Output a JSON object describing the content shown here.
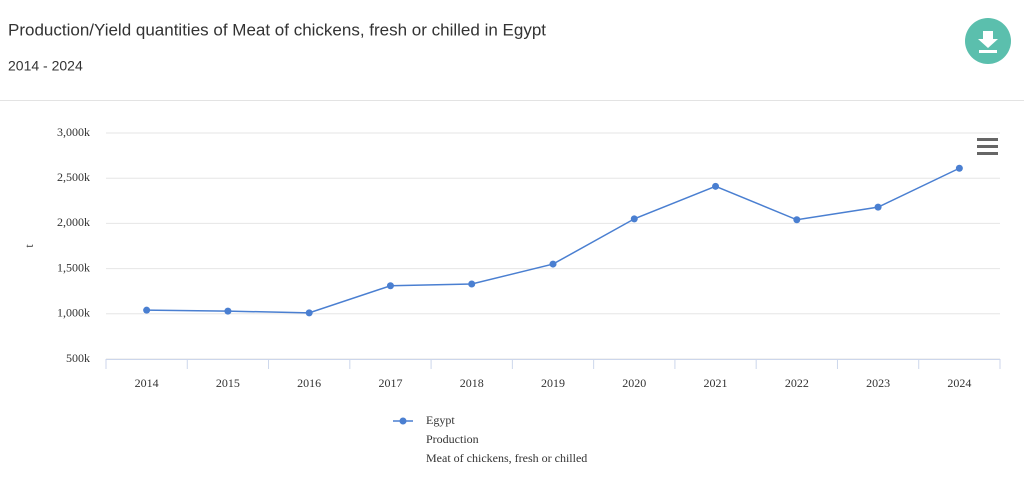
{
  "chart_data": {
    "type": "line",
    "title": "Production/Yield quantities of Meat of chickens, fresh or chilled in Egypt",
    "subtitle": "2014 - 2024",
    "y_label": "t",
    "categories": [
      "2014",
      "2015",
      "2016",
      "2017",
      "2018",
      "2019",
      "2020",
      "2021",
      "2022",
      "2023",
      "2024"
    ],
    "series": [
      {
        "name": "Egypt",
        "element": "Production",
        "item": "Meat of chickens, fresh or chilled",
        "color": "#4a7fd1",
        "values": [
          1040000,
          1030000,
          1010000,
          1310000,
          1330000,
          1550000,
          2050000,
          2410000,
          2040000,
          2180000,
          2610000
        ]
      }
    ],
    "ylim": [
      500000,
      3000000
    ],
    "yticks": [
      {
        "value": 500000,
        "label": "500k"
      },
      {
        "value": 1000000,
        "label": "1,000k"
      },
      {
        "value": 1500000,
        "label": "1,500k"
      },
      {
        "value": 2000000,
        "label": "2,000k"
      },
      {
        "value": 2500000,
        "label": "2,500k"
      },
      {
        "value": 3000000,
        "label": "3,000k"
      }
    ],
    "grid": true
  }
}
